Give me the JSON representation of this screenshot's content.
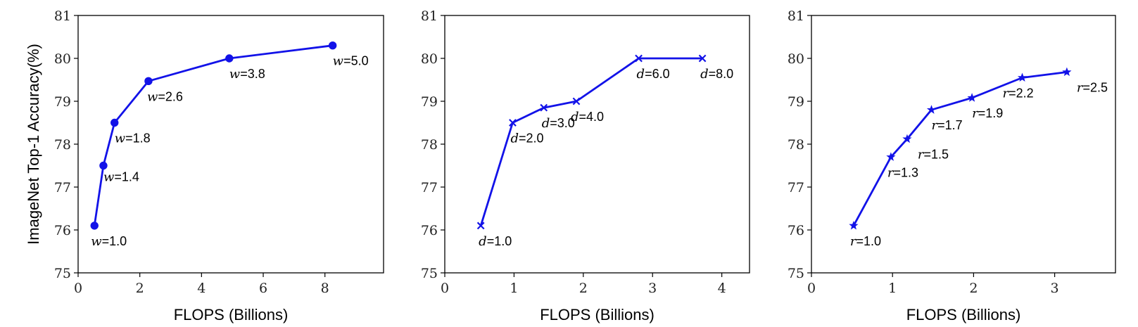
{
  "chart_data": [
    {
      "type": "line",
      "marker": "circle",
      "color": "#1212e8",
      "xlabel": "FLOPS (Billions)",
      "ylabel": "ImageNet Top-1 Accuracy(%)",
      "xlim": [
        0,
        9.9
      ],
      "ylim": [
        75,
        81
      ],
      "xticks": [
        0,
        2,
        4,
        6,
        8
      ],
      "yticks": [
        75,
        76,
        77,
        78,
        79,
        80,
        81
      ],
      "grid": false,
      "series": [
        {
          "x": [
            0.53,
            0.82,
            1.18,
            2.28,
            4.9,
            8.25
          ],
          "y": [
            76.1,
            77.5,
            78.5,
            79.47,
            80.0,
            80.3
          ],
          "point_labels": [
            {
              "var": "w",
              "val": "=1.0"
            },
            {
              "var": "w",
              "val": "=1.4"
            },
            {
              "var": "w",
              "val": "=1.8"
            },
            {
              "var": "w",
              "val": "=2.6"
            },
            {
              "var": "w",
              "val": "=3.8"
            },
            {
              "var": "w",
              "val": "=5.0"
            }
          ]
        }
      ]
    },
    {
      "type": "line",
      "marker": "x",
      "color": "#1212e8",
      "xlabel": "FLOPS (Billions)",
      "ylabel": "",
      "xlim": [
        0,
        4.4
      ],
      "ylim": [
        75,
        81
      ],
      "xticks": [
        0,
        1,
        2,
        3,
        4
      ],
      "yticks": [
        75,
        76,
        77,
        78,
        79,
        80,
        81
      ],
      "grid": false,
      "series": [
        {
          "x": [
            0.52,
            0.98,
            1.43,
            1.9,
            2.8,
            3.72
          ],
          "y": [
            76.1,
            78.5,
            78.85,
            79.0,
            80.0,
            80.0
          ],
          "point_labels": [
            {
              "var": "d",
              "val": "=1.0"
            },
            {
              "var": "d",
              "val": "=2.0"
            },
            {
              "var": "d",
              "val": "=3.0"
            },
            {
              "var": "d",
              "val": "=4.0"
            },
            {
              "var": "d",
              "val": "=6.0"
            },
            {
              "var": "d",
              "val": "=8.0"
            }
          ]
        }
      ]
    },
    {
      "type": "line",
      "marker": "star",
      "color": "#1212e8",
      "xlabel": "FLOPS (Billions)",
      "ylabel": "",
      "xlim": [
        0,
        3.75
      ],
      "ylim": [
        75,
        81
      ],
      "xticks": [
        0,
        1,
        2,
        3
      ],
      "yticks": [
        75,
        76,
        77,
        78,
        79,
        80,
        81
      ],
      "grid": false,
      "series": [
        {
          "x": [
            0.52,
            0.98,
            1.18,
            1.48,
            1.98,
            2.6,
            3.15
          ],
          "y": [
            76.1,
            77.7,
            78.12,
            78.8,
            79.08,
            79.55,
            79.68
          ],
          "point_labels": [
            {
              "var": "r",
              "val": "=1.0"
            },
            {
              "var": "r",
              "val": "=1.3"
            },
            {
              "var": "r",
              "val": "=1.5"
            },
            {
              "var": "r",
              "val": "=1.7"
            },
            {
              "var": "r",
              "val": "=1.9"
            },
            {
              "var": "r",
              "val": "=2.2"
            },
            {
              "var": "r",
              "val": "=2.5"
            }
          ]
        }
      ]
    }
  ]
}
